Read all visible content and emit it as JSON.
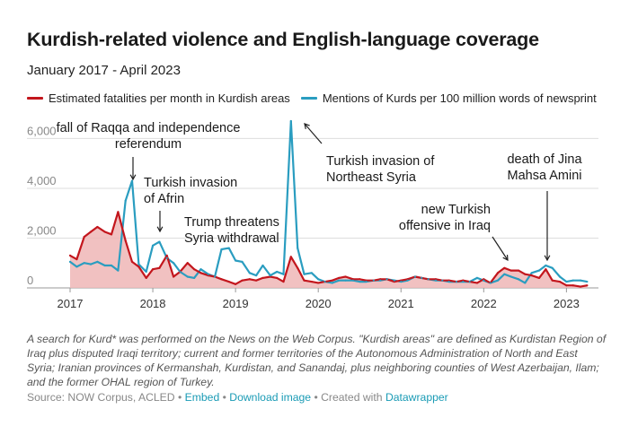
{
  "header": {
    "title": "Kurdish-related violence and English-language coverage",
    "subtitle": "January 2017 - April 2023"
  },
  "colors": {
    "fatalities": "#c3161d",
    "fatalities_fill": "#efb6b6",
    "mentions": "#2a9dc0",
    "grid": "#dddddd",
    "axis_text": "#888888"
  },
  "chart_data": {
    "type": "line",
    "title": "Kurdish-related violence and English-language coverage",
    "subtitle": "January 2017 - April 2023",
    "xlim": [
      2017.0,
      2023.3
    ],
    "ylim": [
      0,
      6700
    ],
    "x_ticks": [
      2017,
      2018,
      2019,
      2020,
      2021,
      2022,
      2023
    ],
    "x_tick_labels": [
      "2017",
      "2018",
      "2019",
      "2020",
      "2021",
      "2022",
      "2023"
    ],
    "y_ticks": [
      0,
      2000,
      4000,
      6000
    ],
    "y_tick_labels": [
      "0",
      "2,000",
      "4,000",
      "6,000"
    ],
    "grid": true,
    "legend_position": "top",
    "series": [
      {
        "name": "Estimated fatalities per month in Kurdish areas",
        "x": [
          2017.0,
          2017.08,
          2017.17,
          2017.25,
          2017.33,
          2017.42,
          2017.5,
          2017.58,
          2017.67,
          2017.75,
          2017.83,
          2017.92,
          2018.0,
          2018.08,
          2018.17,
          2018.25,
          2018.33,
          2018.42,
          2018.5,
          2018.58,
          2018.67,
          2018.75,
          2018.83,
          2018.92,
          2019.0,
          2019.08,
          2019.17,
          2019.25,
          2019.33,
          2019.42,
          2019.5,
          2019.58,
          2019.67,
          2019.75,
          2019.83,
          2019.92,
          2020.0,
          2020.08,
          2020.17,
          2020.25,
          2020.33,
          2020.42,
          2020.5,
          2020.58,
          2020.67,
          2020.75,
          2020.83,
          2020.92,
          2021.0,
          2021.08,
          2021.17,
          2021.25,
          2021.33,
          2021.42,
          2021.5,
          2021.58,
          2021.67,
          2021.75,
          2021.83,
          2021.92,
          2022.0,
          2022.08,
          2022.17,
          2022.25,
          2022.33,
          2022.42,
          2022.5,
          2022.58,
          2022.67,
          2022.75,
          2022.83,
          2022.92,
          2023.0,
          2023.08,
          2023.17,
          2023.25
        ],
        "values": [
          1300,
          1150,
          2050,
          2250,
          2450,
          2250,
          2150,
          3050,
          1900,
          1050,
          850,
          400,
          750,
          800,
          1300,
          450,
          650,
          1000,
          750,
          600,
          500,
          450,
          350,
          250,
          150,
          300,
          350,
          300,
          400,
          450,
          400,
          250,
          1250,
          800,
          300,
          250,
          200,
          250,
          300,
          400,
          450,
          350,
          350,
          300,
          300,
          350,
          350,
          250,
          300,
          350,
          450,
          400,
          350,
          350,
          300,
          300,
          250,
          300,
          250,
          200,
          350,
          200,
          600,
          800,
          700,
          700,
          550,
          500,
          400,
          750,
          300,
          250,
          100,
          100,
          50,
          100
        ]
      },
      {
        "name": "Mentions of Kurds per 100 million words of newsprint",
        "x": [
          2017.0,
          2017.08,
          2017.17,
          2017.25,
          2017.33,
          2017.42,
          2017.5,
          2017.58,
          2017.67,
          2017.75,
          2017.83,
          2017.92,
          2018.0,
          2018.08,
          2018.17,
          2018.25,
          2018.33,
          2018.42,
          2018.5,
          2018.58,
          2018.67,
          2018.75,
          2018.83,
          2018.92,
          2019.0,
          2019.08,
          2019.17,
          2019.25,
          2019.33,
          2019.42,
          2019.5,
          2019.58,
          2019.67,
          2019.75,
          2019.83,
          2019.92,
          2020.0,
          2020.08,
          2020.17,
          2020.25,
          2020.33,
          2020.42,
          2020.5,
          2020.58,
          2020.67,
          2020.75,
          2020.83,
          2020.92,
          2021.0,
          2021.08,
          2021.17,
          2021.25,
          2021.33,
          2021.42,
          2021.5,
          2021.58,
          2021.67,
          2021.75,
          2021.83,
          2021.92,
          2022.0,
          2022.08,
          2022.17,
          2022.25,
          2022.33,
          2022.42,
          2022.5,
          2022.58,
          2022.67,
          2022.75,
          2022.83,
          2022.92,
          2023.0,
          2023.08,
          2023.17,
          2023.25
        ],
        "values": [
          1050,
          850,
          1000,
          950,
          1050,
          900,
          900,
          700,
          3500,
          4300,
          950,
          650,
          1700,
          1850,
          1200,
          1000,
          650,
          450,
          400,
          750,
          550,
          450,
          1550,
          1600,
          1100,
          1050,
          600,
          500,
          900,
          500,
          650,
          550,
          6700,
          1600,
          550,
          600,
          350,
          250,
          200,
          300,
          300,
          300,
          250,
          250,
          300,
          300,
          350,
          300,
          250,
          300,
          450,
          400,
          350,
          300,
          300,
          250,
          250,
          250,
          250,
          400,
          300,
          200,
          300,
          550,
          450,
          350,
          200,
          600,
          700,
          900,
          800,
          450,
          250,
          300,
          300,
          250
        ]
      }
    ],
    "annotations": [
      {
        "text_lines": [
          "fall of Raqqa and independence",
          "referendum"
        ],
        "x": 2017.75,
        "y": 4300
      },
      {
        "text_lines": [
          "Turkish invasion",
          "of Afrin"
        ],
        "x": 2018.08,
        "y": 1850
      },
      {
        "text_lines": [
          "Trump threatens",
          "Syria withdrawal"
        ],
        "x": 2018.92,
        "y": 1600
      },
      {
        "text_lines": [
          "Turkish invasion of",
          "Northeast Syria"
        ],
        "x": 2019.83,
        "y": 6500
      },
      {
        "text_lines": [
          "new Turkish",
          "offensive in Iraq"
        ],
        "x": 2022.33,
        "y": 1000
      },
      {
        "text_lines": [
          "death of Jina",
          "Mahsa Amini"
        ],
        "x": 2022.75,
        "y": 1050
      }
    ]
  },
  "footer": {
    "notes": "A search for Kurd* was performed on the News on the Web Corpus. \"Kurdish areas\" are defined as Kurdistan Region of Iraq plus disputed Iraqi territory; current and former territories of the Autonomous Administration of North and East Syria; Iranian provinces of Kermanshah, Kurdistan, and Sanandaj, plus neighboring counties of West Azerbaijan, Ilam; and the former OHAL region of Turkey.",
    "source_prefix": "Source: NOW Corpus, ACLED • ",
    "embed_label": "Embed",
    "sep1": " • ",
    "download_label": "Download image",
    "sep2": " • Created with ",
    "datawrapper_label": "Datawrapper"
  }
}
